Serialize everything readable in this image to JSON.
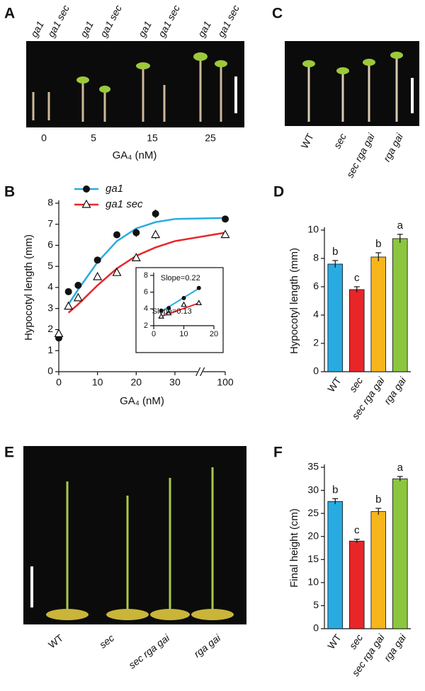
{
  "panel_labels": [
    "A",
    "B",
    "C",
    "D",
    "E",
    "F"
  ],
  "photo_a": {
    "genotypes": [
      "ga1",
      "ga1 sec",
      "ga1",
      "ga1 sec",
      "ga1",
      "ga1 sec",
      "ga1",
      "ga1 sec"
    ],
    "concentrations": [
      "0",
      "5",
      "15",
      "25"
    ],
    "xlabel": "GA₄ (nM)"
  },
  "photo_c": {
    "labels": [
      "WT",
      "sec",
      "sec rga gai",
      "rga gai"
    ]
  },
  "photo_e": {
    "labels": [
      "WT",
      "sec",
      "sec rga gai",
      "rga gai"
    ]
  },
  "chart_data": [
    {
      "type": "line",
      "xlabel": "GA₄ (nM)",
      "ylabel": "Hypocotyl length (mm)",
      "xlim": [
        0,
        100
      ],
      "x_break": [
        38,
        95
      ],
      "xticks": [
        0,
        10,
        20,
        30,
        100
      ],
      "ylim": [
        0,
        8
      ],
      "yticks": [
        0,
        1,
        2,
        3,
        4,
        5,
        6,
        7,
        8
      ],
      "legend": "top-left",
      "x": [
        0,
        2.5,
        5,
        10,
        15,
        20,
        25,
        100
      ],
      "fit_x": [
        2.5,
        5,
        10,
        15,
        20,
        25,
        30,
        100
      ],
      "series": [
        {
          "name": "ga1",
          "color": "#29abe2",
          "marker": "circle",
          "values": [
            1.6,
            3.8,
            4.1,
            5.3,
            6.5,
            6.6,
            7.5,
            7.25
          ],
          "errors": [
            0.1,
            0.1,
            0.1,
            0.12,
            0.15,
            0.2,
            0.2,
            0.15
          ],
          "fit": [
            3.2,
            3.9,
            5.2,
            6.2,
            6.8,
            7.1,
            7.25,
            7.3
          ]
        },
        {
          "name": "ga1 sec",
          "color": "#e8262a",
          "marker": "triangle",
          "values": [
            1.8,
            3.1,
            3.5,
            4.5,
            4.7,
            5.4,
            6.5,
            6.5
          ],
          "errors": [
            0.1,
            0.1,
            0.1,
            0.12,
            0.15,
            0.12,
            0.2,
            0.15
          ],
          "fit": [
            2.8,
            3.2,
            4.1,
            4.9,
            5.5,
            5.9,
            6.2,
            6.6
          ]
        }
      ]
    },
    {
      "type": "line",
      "xlim": [
        0,
        20
      ],
      "xticks": [
        0,
        10,
        20
      ],
      "ylim": [
        2,
        8
      ],
      "yticks": [
        2,
        4,
        6,
        8
      ],
      "x": [
        2.5,
        5,
        10,
        15
      ],
      "fit_x": [
        2.5,
        15
      ],
      "annotations": [
        "Slope=0.22",
        "Slope=0.13"
      ],
      "series": [
        {
          "color": "#29abe2",
          "marker": "circle",
          "values": [
            3.8,
            4.1,
            5.3,
            6.5
          ],
          "fit": [
            3.7,
            6.45
          ]
        },
        {
          "color": "#e8262a",
          "marker": "triangle",
          "values": [
            3.1,
            3.5,
            4.5,
            4.7
          ],
          "fit": [
            3.1,
            4.7
          ]
        }
      ]
    },
    {
      "type": "bar",
      "ylabel": "Hypocotyl length (mm)",
      "ylim": [
        0,
        10
      ],
      "yticks": [
        0,
        2,
        4,
        6,
        8,
        10
      ],
      "categories": [
        "WT",
        "sec",
        "sec rga gai",
        "rga gai"
      ],
      "series": [
        {
          "values": [
            7.6,
            5.8,
            8.1,
            9.4
          ],
          "errors": [
            0.25,
            0.2,
            0.3,
            0.3
          ],
          "colors": [
            "#29abe2",
            "#e8262a",
            "#f7b51c",
            "#8cc63f"
          ]
        }
      ],
      "letters": [
        "b",
        "c",
        "b",
        "a"
      ]
    },
    {
      "type": "bar",
      "ylabel": "Final height (cm)",
      "ylim": [
        0,
        35
      ],
      "yticks": [
        0,
        5,
        10,
        15,
        20,
        25,
        30,
        35
      ],
      "categories": [
        "WT",
        "sec",
        "sec rga gai",
        "rga gai"
      ],
      "series": [
        {
          "values": [
            27.6,
            19,
            25.4,
            32.5
          ],
          "errors": [
            0.6,
            0.4,
            0.7,
            0.5
          ],
          "colors": [
            "#29abe2",
            "#e8262a",
            "#f7b51c",
            "#8cc63f"
          ]
        }
      ],
      "letters": [
        "b",
        "c",
        "b",
        "a"
      ]
    }
  ]
}
